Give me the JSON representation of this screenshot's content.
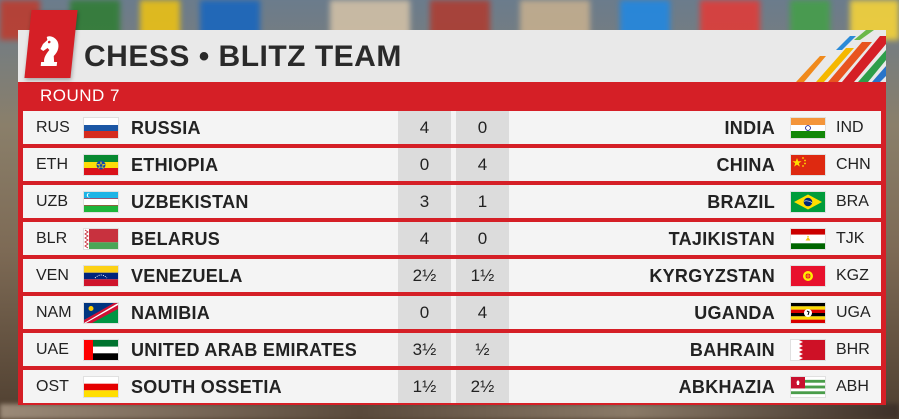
{
  "header": {
    "title": "CHESS • BLITZ TEAM"
  },
  "round": {
    "label": "ROUND 7"
  },
  "matches": [
    {
      "home_code": "RUS",
      "home_flag": "russia-flag",
      "home_name": "RUSSIA",
      "home_score": "4",
      "away_score": "0",
      "away_name": "INDIA",
      "away_flag": "india-flag",
      "away_code": "IND"
    },
    {
      "home_code": "ETH",
      "home_flag": "ethiopia-flag",
      "home_name": "ETHIOPIA",
      "home_score": "0",
      "away_score": "4",
      "away_name": "CHINA",
      "away_flag": "china-flag",
      "away_code": "CHN"
    },
    {
      "home_code": "UZB",
      "home_flag": "uzbekistan-flag",
      "home_name": "UZBEKISTAN",
      "home_score": "3",
      "away_score": "1",
      "away_name": "BRAZIL",
      "away_flag": "brazil-flag",
      "away_code": "BRA"
    },
    {
      "home_code": "BLR",
      "home_flag": "belarus-flag",
      "home_name": "BELARUS",
      "home_score": "4",
      "away_score": "0",
      "away_name": "TAJIKISTAN",
      "away_flag": "tajikistan-flag",
      "away_code": "TJK"
    },
    {
      "home_code": "VEN",
      "home_flag": "venezuela-flag",
      "home_name": "VENEZUELA",
      "home_score": "2½",
      "away_score": "1½",
      "away_name": "KYRGYZSTAN",
      "away_flag": "kyrgyzstan-flag",
      "away_code": "KGZ"
    },
    {
      "home_code": "NAM",
      "home_flag": "namibia-flag",
      "home_name": "NAMIBIA",
      "home_score": "0",
      "away_score": "4",
      "away_name": "UGANDA",
      "away_flag": "uganda-flag",
      "away_code": "UGA"
    },
    {
      "home_code": "UAE",
      "home_flag": "uae-flag",
      "home_name": "UNITED ARAB EMIRATES",
      "home_score": "3½",
      "away_score": "½",
      "away_name": "BAHRAIN",
      "away_flag": "bahrain-flag",
      "away_code": "BHR"
    },
    {
      "home_code": "OST",
      "home_flag": "south-ossetia-flag",
      "home_name": "SOUTH OSSETIA",
      "home_score": "1½",
      "away_score": "2½",
      "away_name": "ABKHAZIA",
      "away_flag": "abkhazia-flag",
      "away_code": "ABH"
    }
  ],
  "colors": {
    "accent_red": "#d51f26",
    "row_bg": "#f4f4f4",
    "score_bg": "#dcdcdc",
    "header_bg": "#e9e9e9"
  }
}
